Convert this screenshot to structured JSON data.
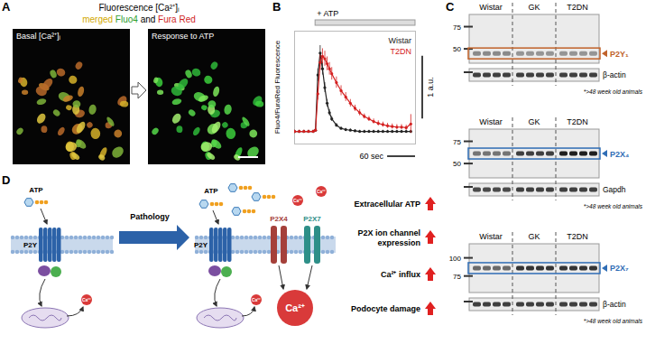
{
  "chart_data": {
    "letter": "B",
    "type": "line",
    "annotation": "+ ATP",
    "atp_span": [
      45,
      260
    ],
    "ylabel": "Fluo4/FuraRed Fluorescence",
    "x": [
      0,
      10,
      20,
      30,
      40,
      45,
      50,
      55,
      60,
      65,
      70,
      75,
      80,
      90,
      100,
      110,
      120,
      130,
      140,
      150,
      160,
      170,
      180,
      190,
      200,
      210,
      220,
      230,
      240,
      250
    ],
    "series": [
      {
        "name": "Wistar",
        "color": "#222222",
        "marker": "circle",
        "values": [
          0.5,
          0.5,
          0.5,
          0.5,
          0.5,
          0.52,
          1.4,
          1.75,
          1.5,
          1.2,
          0.95,
          0.8,
          0.7,
          0.6,
          0.55,
          0.53,
          0.52,
          0.51,
          0.5,
          0.5,
          0.5,
          0.5,
          0.5,
          0.5,
          0.5,
          0.5,
          0.5,
          0.5,
          0.5,
          0.5
        ],
        "errors": [
          0.02,
          0.02,
          0.02,
          0.02,
          0.02,
          0.03,
          0.1,
          0.12,
          0.1,
          0.08,
          0.06,
          0.05,
          0.04,
          0.03,
          0.02,
          0.02,
          0.02,
          0.02,
          0.02,
          0.02,
          0.02,
          0.02,
          0.02,
          0.02,
          0.02,
          0.02,
          0.02,
          0.02,
          0.02,
          0.02
        ]
      },
      {
        "name": "T2DN",
        "color": "#d42020",
        "marker": "circle",
        "values": [
          0.5,
          0.5,
          0.5,
          0.5,
          0.5,
          0.52,
          1.1,
          1.6,
          1.7,
          1.66,
          1.58,
          1.5,
          1.42,
          1.28,
          1.15,
          1.05,
          0.95,
          0.87,
          0.8,
          0.74,
          0.7,
          0.66,
          0.63,
          0.61,
          0.59,
          0.58,
          0.57,
          0.57,
          0.56,
          0.62
        ],
        "errors": [
          0.02,
          0.02,
          0.02,
          0.02,
          0.02,
          0.03,
          0.1,
          0.12,
          0.12,
          0.12,
          0.11,
          0.1,
          0.1,
          0.09,
          0.08,
          0.07,
          0.06,
          0.05,
          0.05,
          0.04,
          0.04,
          0.04,
          0.04,
          0.04,
          0.04,
          0.04,
          0.04,
          0.04,
          0.04,
          0.15
        ]
      }
    ],
    "xlim": [
      0,
      260
    ],
    "ylim": [
      0.3,
      2.1
    ],
    "tick_labels": false,
    "legend": "top-right",
    "scale_bars": [
      {
        "axis": "y",
        "length": 1,
        "label": "1 a.u."
      },
      {
        "axis": "x",
        "length": 60,
        "label": "60 sec"
      }
    ]
  },
  "panels": {
    "A": {
      "letter": "A",
      "title": "Fluorescence [Ca²⁺]ᵢ",
      "legend": [
        {
          "text": "merged",
          "color": "#d2a800"
        },
        {
          "text": "Fluo4",
          "color": "#2e9e2e"
        },
        {
          "text": "and",
          "color": "#000000"
        },
        {
          "text": "Fura Red",
          "color": "#d01f1f"
        }
      ],
      "images": [
        {
          "label": "Basal [Ca²⁺]ᵢ"
        },
        {
          "label": "Response to ATP"
        }
      ]
    },
    "C": {
      "letter": "C",
      "groups": [
        "Wistar",
        "GK",
        "T2DN"
      ],
      "footnote": "*>48 week old animals",
      "blots": [
        {
          "target": "P2Y₁",
          "target_color": "#c0622a",
          "markers": [
            75,
            50
          ],
          "band_kda": 46,
          "loading": "β-actin",
          "target_intensity": [
            0.45,
            0.4,
            0.4
          ],
          "loading_intensity": [
            0.8,
            0.8,
            0.8
          ]
        },
        {
          "target": "P2X₄",
          "target_color": "#2f6db5",
          "markers": [
            75,
            50
          ],
          "band_kda": 60,
          "loading": "Gapdh",
          "target_intensity": [
            0.55,
            0.8,
            0.95
          ],
          "loading_intensity": [
            0.75,
            0.8,
            0.8
          ]
        },
        {
          "target": "P2X₇",
          "target_color": "#2f6db5",
          "markers": [
            100,
            75
          ],
          "band_kda": 85,
          "loading": "β-actin",
          "target_intensity": [
            0.6,
            0.85,
            0.85
          ],
          "loading_intensity": [
            0.8,
            0.8,
            0.8
          ]
        }
      ]
    },
    "D": {
      "letter": "D",
      "stimulus": "ATP",
      "transition": "Pathology",
      "receptors": {
        "metabotropic": "P2Y",
        "channels": [
          "P2X4",
          "P2X7"
        ]
      },
      "ion": "Ca²⁺",
      "outcomes": [
        "Extracellular ATP",
        "P2X ion channel expression",
        "Ca²⁺ influx",
        "Podocyte damage"
      ]
    }
  }
}
